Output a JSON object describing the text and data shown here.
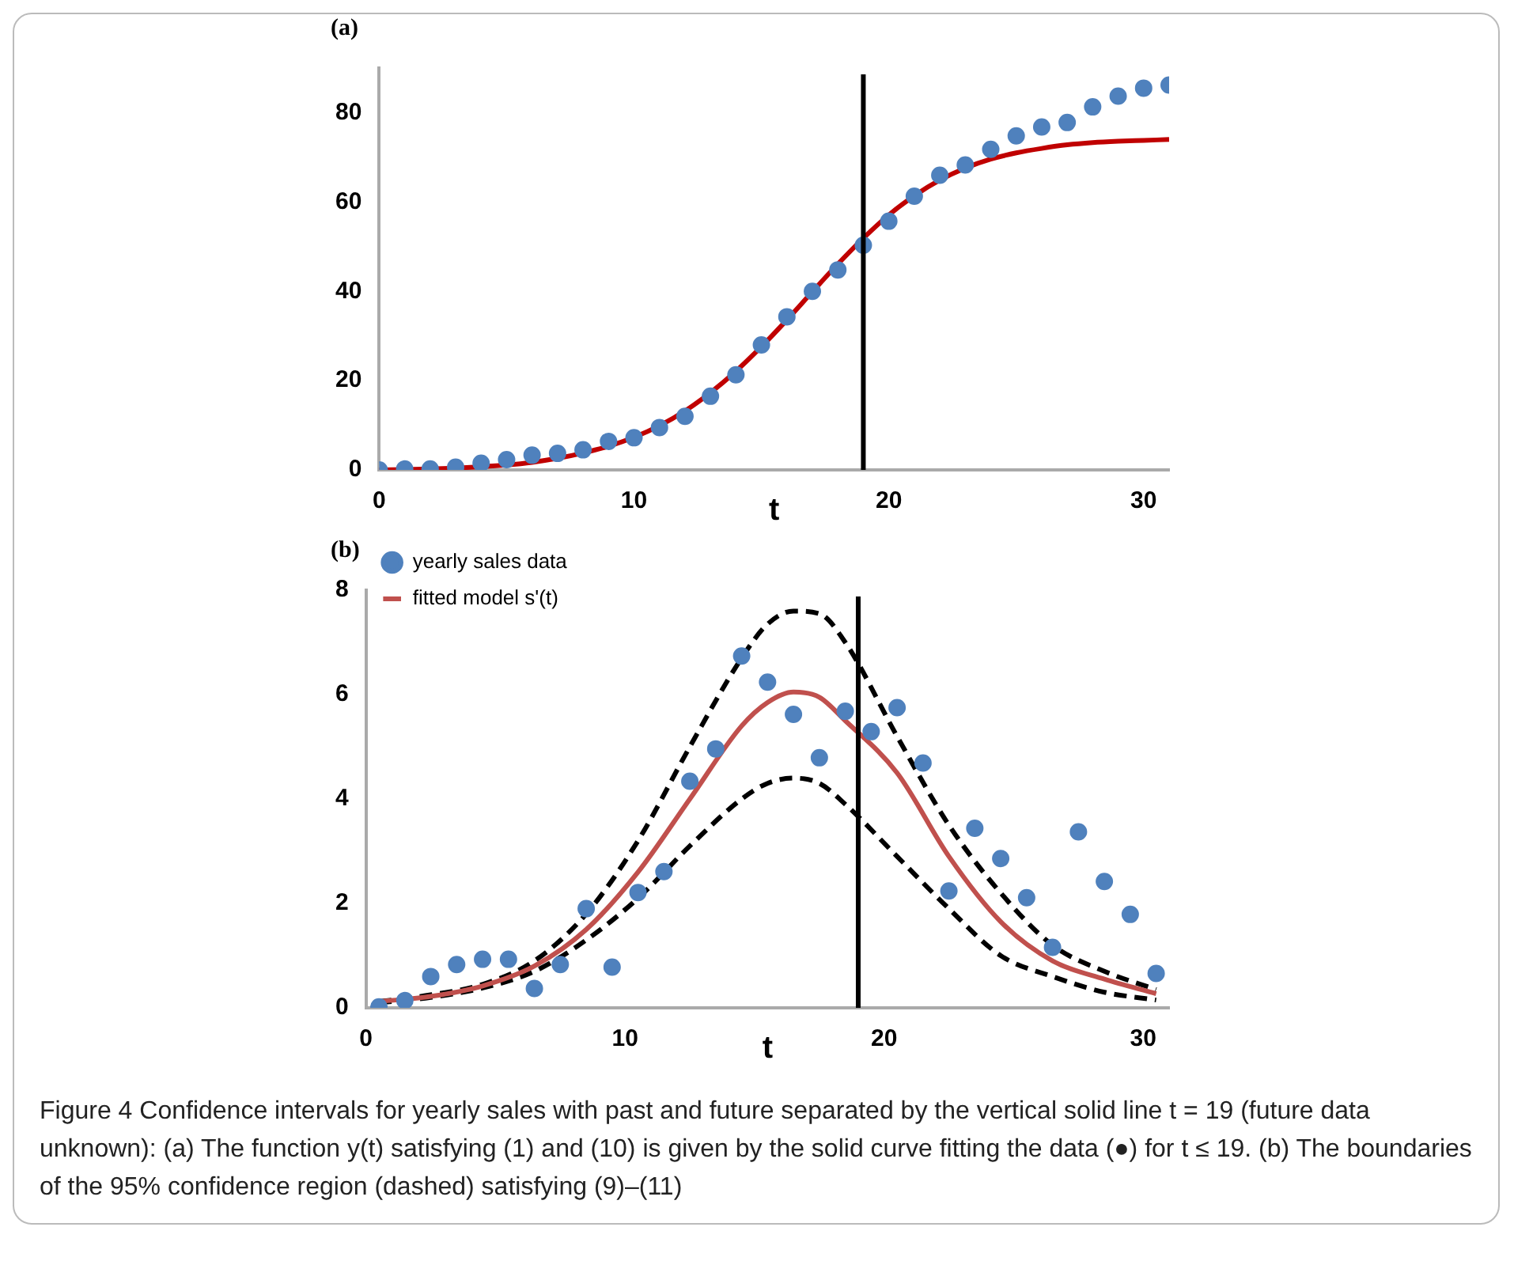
{
  "chart_data": [
    {
      "type": "scatter",
      "title": "(a)",
      "xlabel": "t",
      "xlim": [
        0,
        31
      ],
      "xticks": [
        0,
        10,
        20,
        30
      ],
      "ylim": [
        0,
        90
      ],
      "yticks": [
        0,
        20,
        40,
        60,
        80
      ],
      "grid": false,
      "legend": false,
      "ref_lines": [
        {
          "axis": "x",
          "value": 19,
          "color": "#000000"
        }
      ],
      "series": [
        {
          "type": "scatter",
          "color": "#4f81bd",
          "marker": "circle",
          "x": [
            0,
            1,
            2,
            3,
            4,
            5,
            6,
            7,
            8,
            9,
            10,
            11,
            12,
            13,
            14,
            15,
            16,
            17,
            18,
            19,
            20,
            21,
            22,
            23,
            24,
            25,
            26,
            27,
            28,
            29,
            30,
            31
          ],
          "values": [
            0,
            0.2,
            0.2,
            0.6,
            1.5,
            2.3,
            3.3,
            3.7,
            4.5,
            6.4,
            7.2,
            9.5,
            12,
            16.5,
            21.3,
            28,
            34.3,
            40,
            44.8,
            50.3,
            55.7,
            61.3,
            66,
            68.3,
            71.8,
            74.8,
            76.8,
            77.8,
            81.3,
            83.7,
            85.5,
            86.2
          ]
        },
        {
          "type": "line",
          "color": "#c00000",
          "marker": "none",
          "line_style": "solid",
          "x": [
            0,
            1,
            2,
            3,
            4,
            5,
            6,
            7,
            8,
            9,
            10,
            11,
            12,
            13,
            14,
            15,
            16,
            17,
            18,
            19,
            20,
            21,
            22,
            23,
            24,
            25,
            26,
            27,
            28,
            29,
            30,
            31
          ],
          "values": [
            0,
            0.1,
            0.2,
            0.4,
            0.7,
            1.1,
            1.7,
            2.6,
            3.8,
            5.3,
            7.3,
            9.9,
            13.2,
            17.3,
            22.1,
            27.6,
            33.6,
            39.9,
            46.1,
            51.9,
            57.1,
            61.4,
            64.9,
            67.6,
            69.6,
            71,
            72,
            72.8,
            73.3,
            73.6,
            73.8,
            74
          ]
        }
      ]
    },
    {
      "type": "scatter",
      "title": "(b)",
      "xlabel": "t",
      "xlim": [
        0,
        31
      ],
      "xticks": [
        0,
        10,
        20,
        30
      ],
      "ylim": [
        0,
        8
      ],
      "yticks": [
        0,
        2,
        4,
        6,
        8
      ],
      "grid": false,
      "legend": "top left",
      "ref_lines": [
        {
          "axis": "x",
          "value": 19,
          "color": "#000000"
        }
      ],
      "annotations": [
        "Figure 4  Confidence intervals for yearly sales with past and future separated by the vertical solid line t = 19 (future data unknown): (a) The function y(t) satisfying (1) and (10) is given by the solid curve fitting the data (●) for t ≤ 19. (b) The boundaries of the 95% confidence region (dashed) satisfying (9)–(11)"
      ],
      "series": [
        {
          "type": "scatter",
          "name": "yearly sales data",
          "color": "#4f81bd",
          "marker": "circle",
          "x": [
            0.5,
            1.5,
            2.5,
            3.5,
            4.5,
            5.5,
            6.5,
            7.5,
            8.5,
            9.5,
            10.5,
            11.5,
            12.5,
            13.5,
            14.5,
            15.5,
            16.5,
            17.5,
            18.5,
            19.5,
            20.5,
            21.5,
            22.5,
            23.5,
            24.5,
            25.5,
            26.5,
            27.5,
            28.5,
            29.5,
            30.5
          ],
          "values": [
            0.02,
            0.14,
            0.6,
            0.83,
            0.93,
            0.93,
            0.37,
            0.83,
            1.9,
            0.78,
            2.21,
            2.61,
            4.34,
            4.96,
            6.74,
            6.24,
            5.62,
            4.79,
            5.68,
            5.29,
            5.75,
            4.69,
            2.24,
            3.44,
            2.86,
            2.11,
            1.16,
            3.37,
            2.42,
            1.79,
            0.66
          ]
        },
        {
          "type": "line",
          "name": "fitted model s'(t)",
          "color": "#c0504d",
          "marker": "none",
          "line_style": "solid",
          "x": [
            0.5,
            2.5,
            4.5,
            6.5,
            8.5,
            10.5,
            12.5,
            14.5,
            15.5,
            16.5,
            17.5,
            18.5,
            20.5,
            22.5,
            24.5,
            26.5,
            28.5,
            30.5
          ],
          "values": [
            0.12,
            0.22,
            0.42,
            0.8,
            1.5,
            2.6,
            4,
            5.4,
            5.85,
            6.05,
            5.95,
            5.5,
            4.5,
            2.9,
            1.65,
            0.9,
            0.55,
            0.27
          ]
        },
        {
          "type": "line",
          "color": "#000000",
          "marker": "none",
          "line_style": "dashed",
          "x": [
            0.5,
            2.5,
            4.5,
            6.5,
            8.5,
            10.5,
            12.5,
            14.5,
            15.5,
            16.5,
            17.5,
            18.5,
            20.5,
            22.5,
            24.5,
            26.5,
            28.5,
            30.5
          ],
          "values": [
            0.12,
            0.25,
            0.45,
            0.9,
            1.8,
            3.2,
            5,
            6.7,
            7.35,
            7.6,
            7.55,
            7,
            5.2,
            3.5,
            2.2,
            1.2,
            0.7,
            0.35
          ]
        },
        {
          "type": "line",
          "color": "#000000",
          "marker": "none",
          "line_style": "dashed",
          "x": [
            0.5,
            2.5,
            4.5,
            6.5,
            8.5,
            10.5,
            12.5,
            14.5,
            15.5,
            16.5,
            17.5,
            18.5,
            20.5,
            22.5,
            24.5,
            26.5,
            28.5,
            30.5
          ],
          "values": [
            0.1,
            0.2,
            0.38,
            0.7,
            1.3,
            2.1,
            3.1,
            4,
            4.3,
            4.4,
            4.3,
            3.9,
            2.9,
            1.9,
            1,
            0.6,
            0.3,
            0.15
          ]
        }
      ]
    }
  ]
}
